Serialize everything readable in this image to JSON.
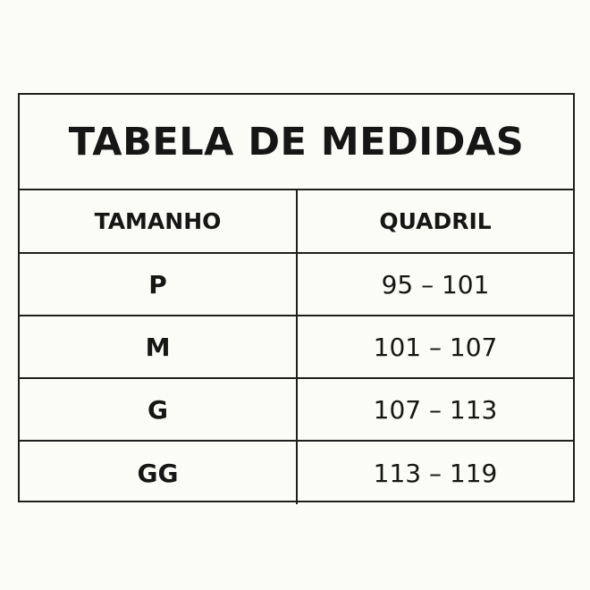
{
  "title": "TABELA DE MEDIDAS",
  "headers": [
    "TAMANHO",
    "QUADRIL"
  ],
  "rows": [
    {
      "size": "P",
      "hip": "95 – 101"
    },
    {
      "size": "M",
      "hip": "101 – 107"
    },
    {
      "size": "G",
      "hip": "107 – 113"
    },
    {
      "size": "GG",
      "hip": "113 – 119"
    }
  ]
}
